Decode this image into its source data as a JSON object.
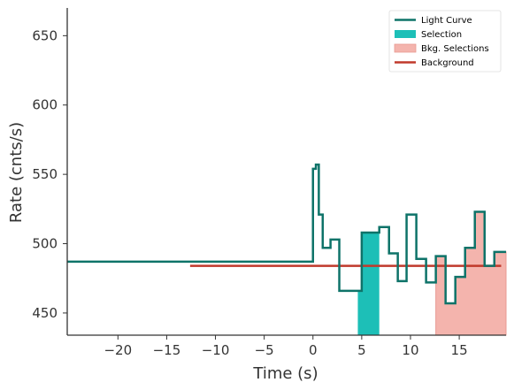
{
  "chart_data": {
    "type": "line",
    "xlabel": "Time (s)",
    "ylabel": "Rate (cnts/s)",
    "xlim": [
      -25.2,
      19.8
    ],
    "ylim": [
      434,
      670
    ],
    "xticks": [
      -20,
      -15,
      -10,
      -5,
      0,
      5,
      10,
      15
    ],
    "xtick_labels": [
      "−20",
      "−15",
      "−10",
      "−5",
      "0",
      "5",
      "10",
      "15"
    ],
    "yticks": [
      450,
      500,
      550,
      600,
      650
    ],
    "ytick_labels": [
      "450",
      "500",
      "550",
      "600",
      "650"
    ],
    "grid": false,
    "legend_position": "top-right",
    "colors": {
      "light_curve": "#0e7369",
      "selection": "#1dbfb7",
      "bkg_selection": "#f4b4ad",
      "bkg_selection_edge": "#e89a92",
      "background": "#c0392b",
      "axis": "#333333"
    },
    "legend": [
      {
        "label": "Light Curve",
        "kind": "line",
        "color": "#0e7369"
      },
      {
        "label": "Selection",
        "kind": "patch",
        "color": "#1dbfb7"
      },
      {
        "label": "Bkg. Selections",
        "kind": "patch",
        "color": "#f4b4ad"
      },
      {
        "label": "Background",
        "kind": "line",
        "color": "#c0392b"
      }
    ],
    "light_curve": {
      "name": "Light Curve",
      "edges": [
        -25.2,
        0.0,
        0.3,
        0.6,
        1.0,
        1.8,
        2.7,
        3.6,
        5.0,
        6.1,
        6.8,
        7.8,
        8.7,
        9.6,
        10.6,
        11.6,
        12.6,
        13.6,
        14.6,
        15.6,
        16.6,
        17.6,
        18.6,
        19.8
      ],
      "values": [
        487,
        554,
        557,
        521,
        497,
        503,
        466,
        466,
        508,
        508,
        512,
        493,
        473,
        521,
        489,
        472,
        491,
        457,
        476,
        497,
        523,
        484,
        494
      ]
    },
    "selection": {
      "name": "Selection",
      "x_start": 4.6,
      "x_end": 6.8
    },
    "bkg_selections": {
      "name": "Bkg. Selections",
      "x_start": 12.6,
      "x_end": 19.8
    },
    "background": {
      "name": "Background",
      "x_start": -12.6,
      "x_end": 19.3,
      "value": 484
    }
  }
}
